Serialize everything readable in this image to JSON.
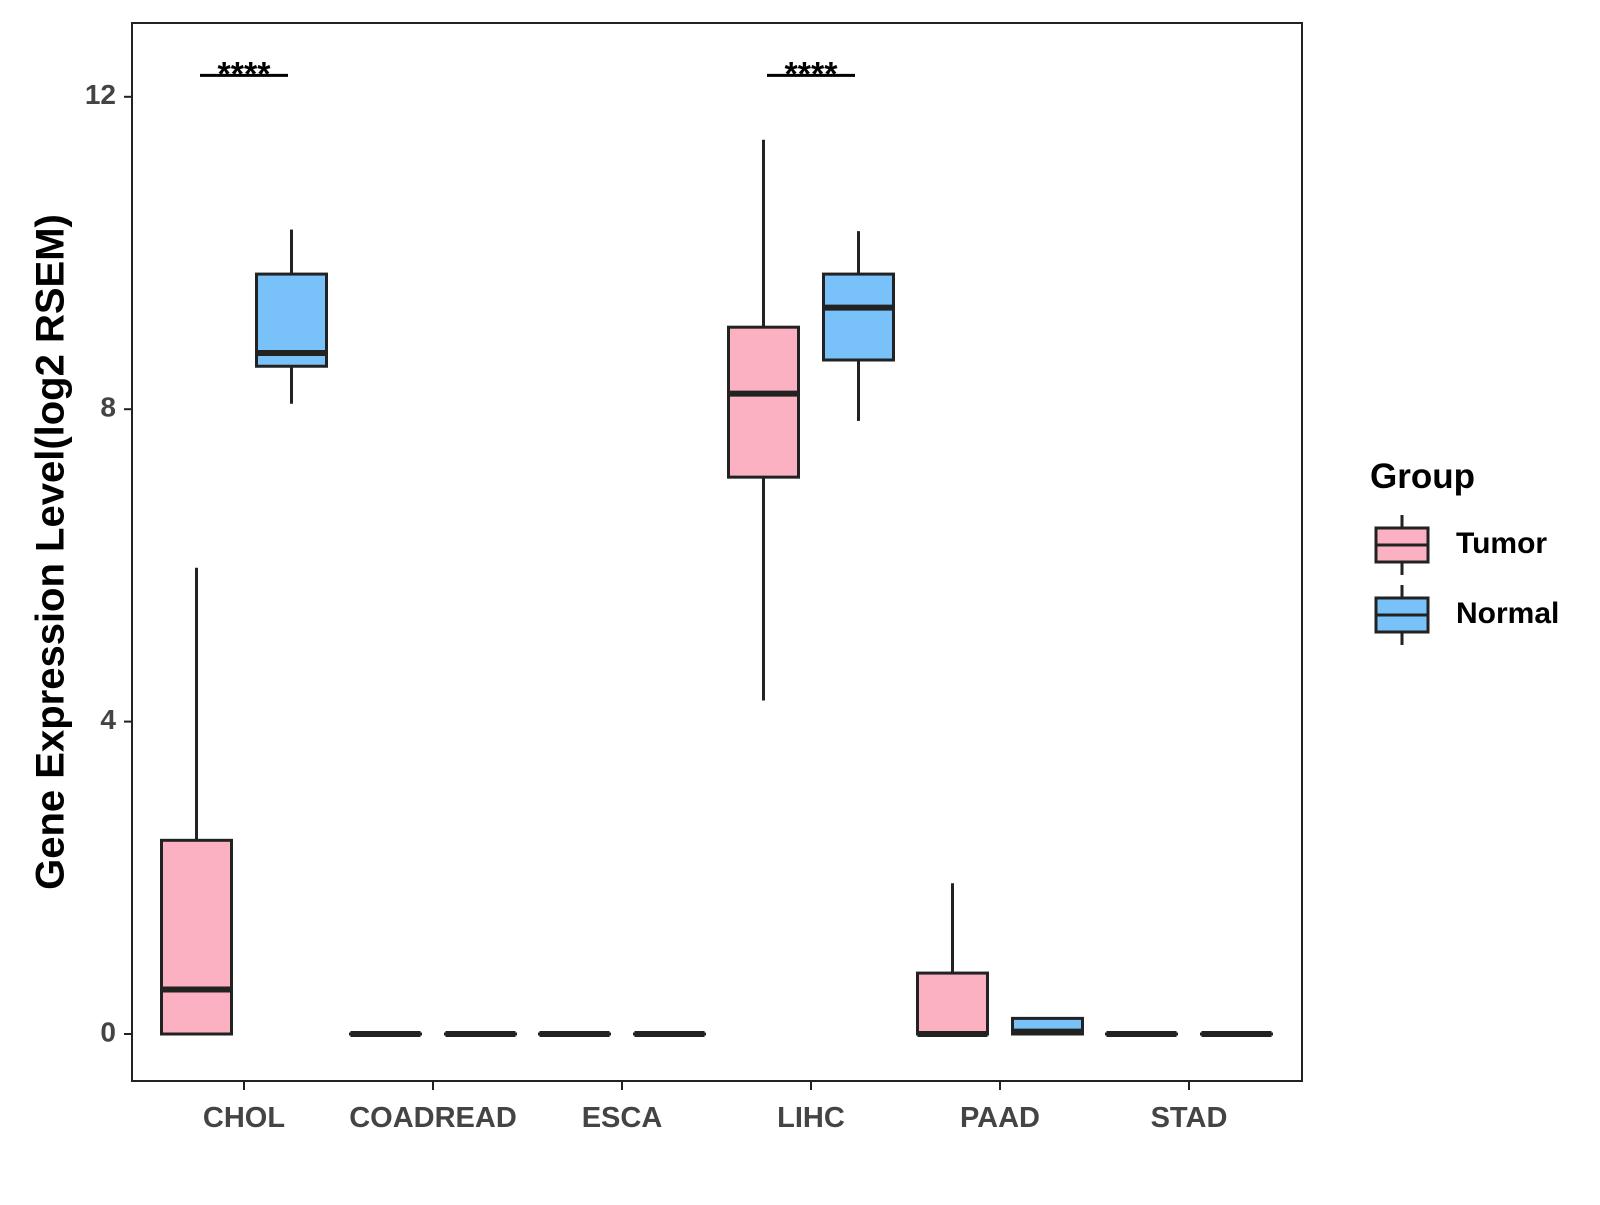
{
  "chart_data": {
    "type": "boxplot",
    "title": "",
    "xlabel": "",
    "ylabel": "Gene Expression Level(log2 RSEM)",
    "ylim": [
      -0.6,
      12.95
    ],
    "yticks": [
      0,
      4,
      8,
      12
    ],
    "grid": false,
    "categories": [
      "CHOL",
      "COADREAD",
      "ESCA",
      "LIHC",
      "PAAD",
      "STAD"
    ],
    "legend": {
      "title": "Group",
      "position": "right",
      "entries": [
        {
          "name": "Tumor",
          "color": "#FCB1C3"
        },
        {
          "name": "Normal",
          "color": "#78C2F9"
        }
      ]
    },
    "series": [
      {
        "name": "Tumor",
        "color": "#FCB1C3",
        "boxes": [
          {
            "category": "CHOL",
            "min": 0,
            "q1": 0,
            "median": 0.57,
            "q3": 2.48,
            "max": 5.97
          },
          {
            "category": "COADREAD",
            "min": 0,
            "q1": 0,
            "median": 0,
            "q3": 0,
            "max": 0
          },
          {
            "category": "ESCA",
            "min": 0,
            "q1": 0,
            "median": 0,
            "q3": 0,
            "max": 0
          },
          {
            "category": "LIHC",
            "min": 4.27,
            "q1": 7.13,
            "median": 8.2,
            "q3": 9.05,
            "max": 11.45
          },
          {
            "category": "PAAD",
            "min": 0,
            "q1": 0,
            "median": 0,
            "q3": 0.78,
            "max": 1.93
          },
          {
            "category": "STAD",
            "min": 0,
            "q1": 0,
            "median": 0,
            "q3": 0,
            "max": 0
          }
        ]
      },
      {
        "name": "Normal",
        "color": "#78C2F9",
        "boxes": [
          {
            "category": "CHOL",
            "min": 8.07,
            "q1": 8.55,
            "median": 8.72,
            "q3": 9.73,
            "max": 10.3
          },
          {
            "category": "COADREAD",
            "min": 0,
            "q1": 0,
            "median": 0,
            "q3": 0,
            "max": 0
          },
          {
            "category": "ESCA",
            "min": 0,
            "q1": 0,
            "median": 0,
            "q3": 0,
            "max": 0
          },
          {
            "category": "LIHC",
            "min": 7.85,
            "q1": 8.63,
            "median": 9.3,
            "q3": 9.73,
            "max": 10.28
          },
          {
            "category": "PAAD",
            "min": 0,
            "q1": 0,
            "median": 0.03,
            "q3": 0.2,
            "max": 0.2
          },
          {
            "category": "STAD",
            "min": 0,
            "q1": 0,
            "median": 0,
            "q3": 0,
            "max": 0
          }
        ]
      }
    ],
    "annotations": [
      {
        "category": "CHOL",
        "label": "****",
        "y": 12.3
      },
      {
        "category": "LIHC",
        "label": "****",
        "y": 12.3
      }
    ]
  }
}
